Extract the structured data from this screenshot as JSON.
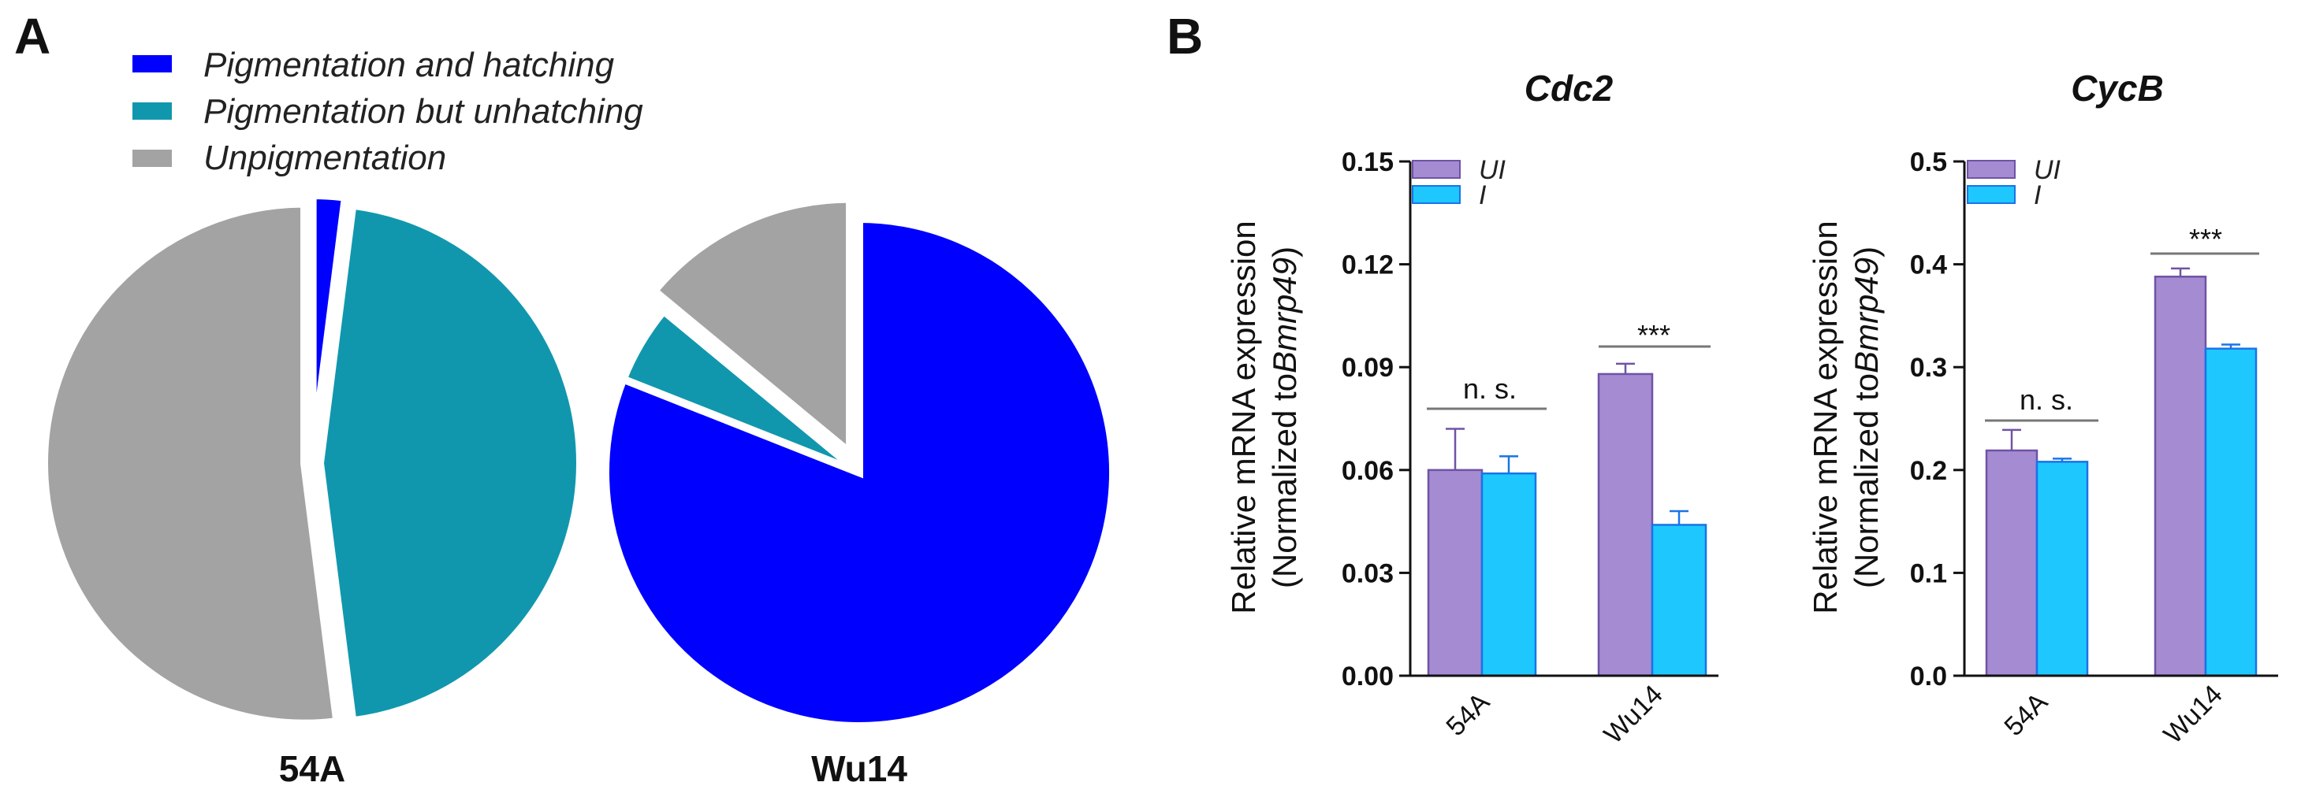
{
  "panels": {
    "a_label": "A",
    "b_label": "B"
  },
  "colors": {
    "pigmented_hatching": "#0000ff",
    "pigmented_unhatching": "#1197ad",
    "unpigmented": "#a3a3a3",
    "ui": "#a48bd2",
    "ui_edge": "#6f53a6",
    "i": "#1ec8ff",
    "i_edge": "#1a73e8",
    "significance_line": "#777777"
  },
  "chart_data": [
    {
      "type": "pie",
      "name": "54A",
      "label": "54A",
      "legend": [
        "Pigmentation and hatching",
        "Pigmentation but unhatching",
        "Unpigmentation"
      ],
      "values": [
        2,
        46,
        52
      ]
    },
    {
      "type": "pie",
      "name": "Wu14",
      "label": "Wu14",
      "legend": [
        "Pigmentation and hatching",
        "Pigmentation but unhatching",
        "Unpigmentation"
      ],
      "values": [
        81,
        5,
        14
      ]
    },
    {
      "type": "bar",
      "title": "Cdc2",
      "ylabel_line1": "Relative mRNA expression",
      "ylabel_line2_prefix": "(Normalized to",
      "ylabel_line2_italic": "Bmrp49",
      "ylabel_line2_suffix": ")",
      "ylim": [
        0,
        0.15
      ],
      "ticks": [
        "0.00",
        "0.03",
        "0.06",
        "0.09",
        "0.12",
        "0.15"
      ],
      "categories": [
        "54A",
        "Wu14"
      ],
      "series": [
        {
          "name": "UI",
          "values": [
            0.06,
            0.088
          ],
          "errors": [
            0.012,
            0.003
          ]
        },
        {
          "name": "I",
          "values": [
            0.059,
            0.044
          ],
          "errors": [
            0.005,
            0.004
          ]
        }
      ],
      "annotations": [
        "n. s.",
        "***"
      ]
    },
    {
      "type": "bar",
      "title": "CycB",
      "ylabel_line1": "Relative mRNA expression",
      "ylabel_line2_prefix": "(Normalized to",
      "ylabel_line2_italic": "Bmrp49",
      "ylabel_line2_suffix": ")",
      "ylim": [
        0,
        0.5
      ],
      "ticks": [
        "0.0",
        "0.1",
        "0.2",
        "0.3",
        "0.4",
        "0.5"
      ],
      "categories": [
        "54A",
        "Wu14"
      ],
      "series": [
        {
          "name": "UI",
          "values": [
            0.219,
            0.388
          ],
          "errors": [
            0.02,
            0.008
          ]
        },
        {
          "name": "I",
          "values": [
            0.208,
            0.318
          ],
          "errors": [
            0.003,
            0.004
          ]
        }
      ],
      "annotations": [
        "n. s.",
        "***"
      ]
    }
  ]
}
